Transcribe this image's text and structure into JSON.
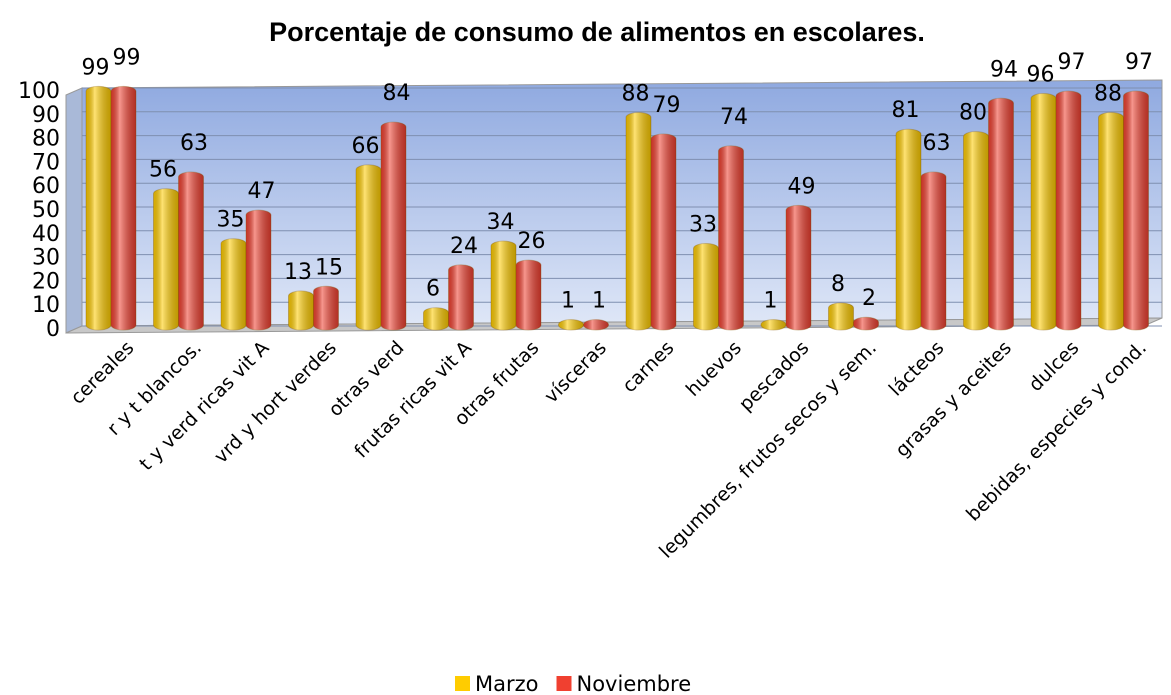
{
  "chart_data": {
    "type": "bar",
    "title": "Porcentaje de consumo de alimentos en escolares.",
    "categories": [
      "cereales",
      "r y t blancos.",
      "t y verd ricas vit A",
      "vrd y hort verdes",
      "otras verd",
      "frutas ricas vit A",
      "otras  frutas",
      "vísceras",
      "carnes",
      "huevos",
      "pescados",
      "legumbres, frutos secos y sem.",
      "lácteos",
      "grasas y aceites",
      "dulces",
      "bebidas, especies y cond."
    ],
    "series": [
      {
        "name": "Marzo",
        "color": "#ffcc00",
        "values": [
          99,
          56,
          35,
          13,
          66,
          6,
          34,
          1,
          88,
          33,
          1,
          8,
          81,
          80,
          96,
          88
        ]
      },
      {
        "name": "Noviembre",
        "color": "#f04030",
        "values": [
          99,
          63,
          47,
          15,
          84,
          24,
          26,
          1,
          79,
          74,
          49,
          2,
          63,
          94,
          97,
          97
        ]
      }
    ],
    "ylim": [
      0,
      100
    ],
    "yticks": [
      0,
      10,
      20,
      30,
      40,
      50,
      60,
      70,
      80,
      90,
      100
    ],
    "grid": true,
    "legend": "bottom"
  }
}
